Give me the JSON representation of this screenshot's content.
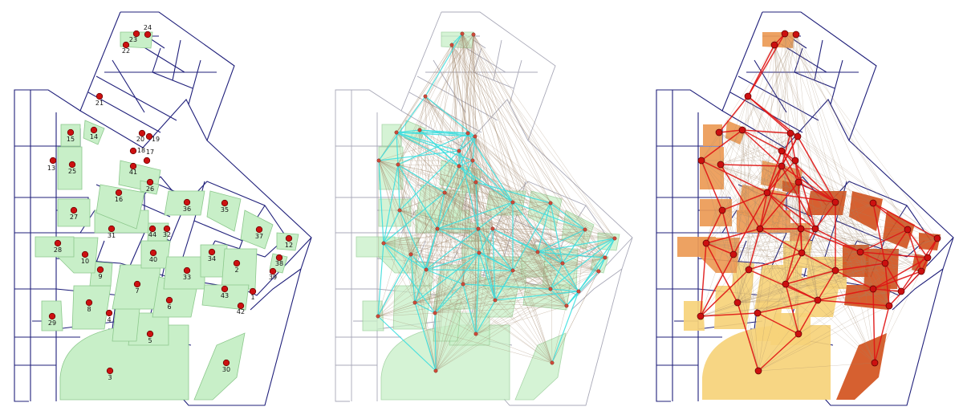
{
  "colors": {
    "street": "#1f1f7a",
    "street_light": "#a9a9b8",
    "parcel_green": "#c8efc8",
    "parcel_green_stroke": "#8cc88c",
    "node_red": "#cc1010",
    "edge_brown": "#a0866a",
    "edge_cyan": "#3fe0e0",
    "edge_red": "#e01515",
    "fill_yellow": "#f6d27a",
    "fill_orange": "#ec9a55",
    "fill_darkorange": "#d2521e"
  },
  "node_labels": [
    "1",
    "2",
    "3",
    "4",
    "5",
    "6",
    "7",
    "8",
    "9",
    "10",
    "12",
    "13",
    "14",
    "15",
    "16",
    "17",
    "18",
    "19",
    "20",
    "21",
    "22",
    "23",
    "24",
    "25",
    "26",
    "27",
    "28",
    "29",
    "30",
    "31",
    "32",
    "33",
    "34",
    "35",
    "36",
    "37",
    "38",
    "39",
    "40",
    "41",
    "42",
    "43",
    "44"
  ]
}
